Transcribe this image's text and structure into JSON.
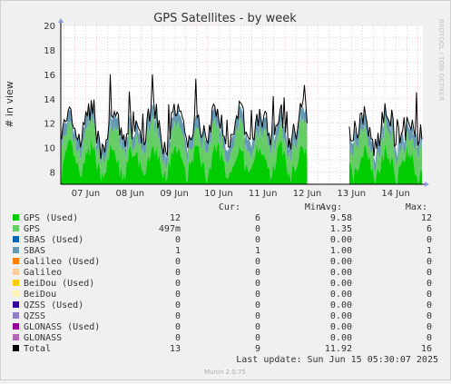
{
  "chart_data": {
    "type": "area",
    "title": "GPS Satellites - by week",
    "ylabel": "# in view",
    "xlabel": "",
    "ylim": [
      7,
      20
    ],
    "yticks": [
      8,
      10,
      12,
      14,
      16,
      18,
      20
    ],
    "x_categories": [
      "07 Jun",
      "08 Jun",
      "09 Jun",
      "10 Jun",
      "11 Jun",
      "12 Jun",
      "13 Jun",
      "14 Jun"
    ],
    "grid": true,
    "data_gap": [
      "12 Jun",
      "13 Jun"
    ],
    "series": [
      {
        "name": "GPS (Used)",
        "color": "#00cc00",
        "cur": "12",
        "min": "6",
        "avg": "9.58",
        "max": "12"
      },
      {
        "name": "GPS",
        "color": "#66cc66",
        "cur": "497m",
        "min": "0",
        "avg": "1.35",
        "max": "6"
      },
      {
        "name": "SBAS (Used)",
        "color": "#0066b3",
        "cur": "0",
        "min": "0",
        "avg": "0.00",
        "max": "0"
      },
      {
        "name": "SBAS",
        "color": "#6699b3",
        "cur": "1",
        "min": "1",
        "avg": "1.00",
        "max": "1"
      },
      {
        "name": "Galileo (Used)",
        "color": "#ff8000",
        "cur": "0",
        "min": "0",
        "avg": "0.00",
        "max": "0"
      },
      {
        "name": "Galileo",
        "color": "#ffcc99",
        "cur": "0",
        "min": "0",
        "avg": "0.00",
        "max": "0"
      },
      {
        "name": "BeiDou (Used)",
        "color": "#ffcc00",
        "cur": "0",
        "min": "0",
        "avg": "0.00",
        "max": "0"
      },
      {
        "name": "BeiDou",
        "color": "#fff2b3",
        "cur": "0",
        "min": "0",
        "avg": "0.00",
        "max": "0"
      },
      {
        "name": "QZSS (Used)",
        "color": "#330099",
        "cur": "0",
        "min": "0",
        "avg": "0.00",
        "max": "0"
      },
      {
        "name": "QZSS",
        "color": "#8f7fc7",
        "cur": "0",
        "min": "0",
        "avg": "0.00",
        "max": "0"
      },
      {
        "name": "GLONASS (Used)",
        "color": "#990099",
        "cur": "0",
        "min": "0",
        "avg": "0.00",
        "max": "0"
      },
      {
        "name": "GLONASS",
        "color": "#b366b3",
        "cur": "0",
        "min": "0",
        "avg": "0.00",
        "max": "0"
      },
      {
        "name": "Total",
        "color": "#000000",
        "cur": "13",
        "min": "9",
        "avg": "11.92",
        "max": "16"
      }
    ]
  },
  "legend_headers": {
    "cur": "Cur:",
    "min": "Min:",
    "avg": "Avg:",
    "max": "Max:"
  },
  "last_update": "Last update: Sun Jun 15 05:30:07 2025",
  "side_label": "RRDTOOL / TOBI OETIKER",
  "footer": "Munin 2.0.75"
}
